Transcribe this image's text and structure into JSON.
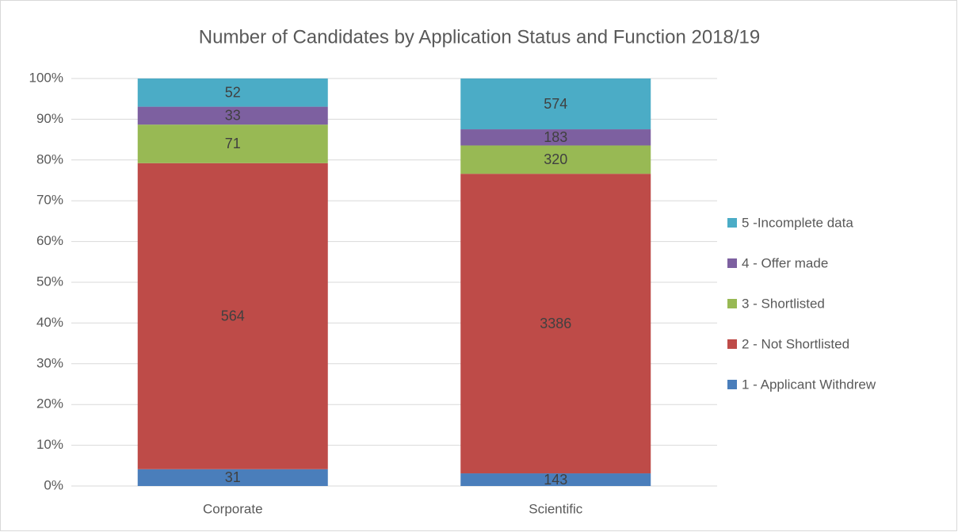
{
  "chart_data": {
    "type": "bar",
    "stacking": "percent",
    "title": "Number of Candidates by  Application Status and Function 2018/19",
    "categories": [
      "Corporate",
      "Scientific"
    ],
    "series": [
      {
        "name": "1 - Applicant Withdrew",
        "color": "#4a7ebb",
        "values": [
          31,
          143
        ]
      },
      {
        "name": "2 - Not Shortlisted",
        "color": "#be4b48",
        "values": [
          564,
          3386
        ]
      },
      {
        "name": "3 - Shortlisted",
        "color": "#98b954",
        "values": [
          71,
          320
        ]
      },
      {
        "name": "4 - Offer made",
        "color": "#7d60a0",
        "values": [
          33,
          183
        ]
      },
      {
        "name": "5 -Incomplete data",
        "color": "#4bacc6",
        "values": [
          52,
          574
        ]
      }
    ],
    "ylim": [
      0,
      100
    ],
    "yticks": [
      {
        "value": 0,
        "label": "0%"
      },
      {
        "value": 10,
        "label": "10%"
      },
      {
        "value": 20,
        "label": "20%"
      },
      {
        "value": 30,
        "label": "30%"
      },
      {
        "value": 40,
        "label": "40%"
      },
      {
        "value": 50,
        "label": "50%"
      },
      {
        "value": 60,
        "label": "60%"
      },
      {
        "value": 70,
        "label": "70%"
      },
      {
        "value": 80,
        "label": "80%"
      },
      {
        "value": 90,
        "label": "90%"
      },
      {
        "value": 100,
        "label": "100%"
      }
    ],
    "grid": true,
    "legend": "right"
  }
}
